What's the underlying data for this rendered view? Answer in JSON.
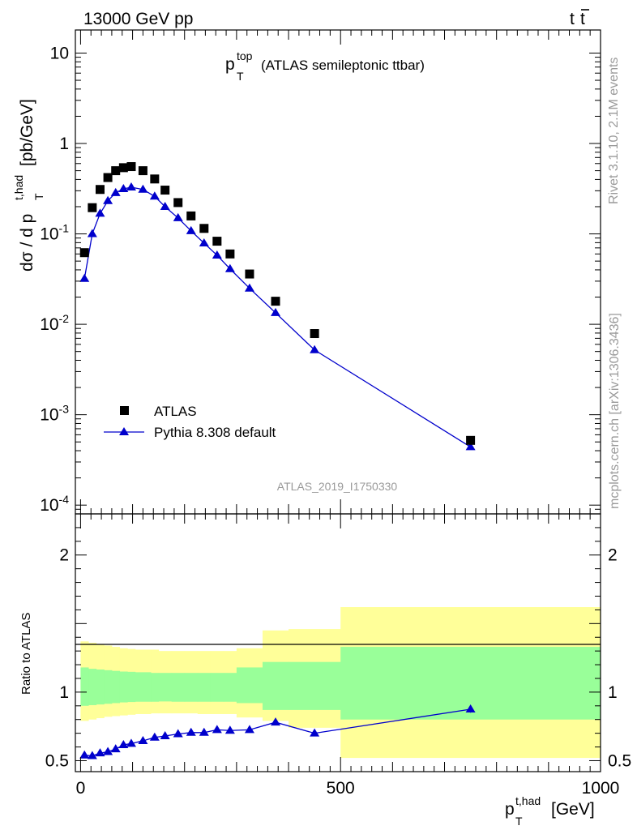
{
  "header": {
    "left": "13000 GeV pp",
    "right_main": "t",
    "right_bar": "t"
  },
  "side_labels": {
    "rivet": "Rivet 3.1.10,  2.1M events",
    "mcplots": "mcplots.cern.ch [arXiv:1306.3436]"
  },
  "chart_data": [
    {
      "type": "scatter",
      "panel": "main",
      "title": {
        "base": "p",
        "sup": "top",
        "sub": "T",
        "rest": "(ATLAS semileptonic ttbar)"
      },
      "ylabel": {
        "prefix": "dσ / d p",
        "sup": "t,had",
        "sub": "T",
        "suffix": "[pb/GeV]"
      },
      "yscale": "log",
      "xlim": [
        -10,
        1000
      ],
      "ylim": [
        8e-05,
        18
      ],
      "ytick_labels": [
        {
          "base": "10",
          "exp": "-4",
          "value": 0.0001
        },
        {
          "base": "10",
          "exp": "-3",
          "value": 0.001
        },
        {
          "base": "10",
          "exp": "-2",
          "value": 0.01
        },
        {
          "base": "10",
          "exp": "-1",
          "value": 0.1
        },
        {
          "base": "1",
          "exp": "",
          "value": 1
        },
        {
          "base": "10",
          "exp": "",
          "value": 10
        }
      ],
      "watermark": "ATLAS_2019_I1750330",
      "legend_position": "lower-left",
      "series": [
        {
          "name": "ATLAS",
          "marker": "square",
          "color": "#000000",
          "x": [
            7.5,
            22.5,
            37.5,
            52.5,
            67.5,
            82.5,
            97.5,
            120,
            142.5,
            162.5,
            187.5,
            212.5,
            237.5,
            262.5,
            287.5,
            325,
            375,
            450,
            750
          ],
          "y": [
            0.062,
            0.195,
            0.31,
            0.42,
            0.5,
            0.54,
            0.555,
            0.5,
            0.405,
            0.305,
            0.222,
            0.158,
            0.115,
            0.083,
            0.06,
            0.036,
            0.018,
            0.0079,
            0.00052
          ]
        },
        {
          "name": "Pythia 8.308 default",
          "marker": "triangle",
          "color": "#0000cc",
          "x": [
            7.5,
            22.5,
            37.5,
            52.5,
            67.5,
            82.5,
            97.5,
            120,
            142.5,
            162.5,
            187.5,
            212.5,
            237.5,
            262.5,
            287.5,
            325,
            375,
            450,
            750
          ],
          "y": [
            0.032,
            0.1,
            0.168,
            0.232,
            0.285,
            0.315,
            0.328,
            0.31,
            0.26,
            0.2,
            0.15,
            0.108,
            0.079,
            0.058,
            0.041,
            0.025,
            0.0134,
            0.0052,
            0.00044
          ]
        }
      ]
    },
    {
      "type": "line",
      "panel": "ratio",
      "ylabel": "Ratio to ATLAS",
      "xlabel": {
        "base": "p",
        "sup": "t,had",
        "sub": "T",
        "suffix": "[GeV]"
      },
      "xlim": [
        -10,
        1000
      ],
      "ylim": [
        0.42,
        2.3
      ],
      "xtick_labels": [
        "0",
        "500",
        "1000"
      ],
      "ytick_labels": [
        "0.5",
        "1",
        "2"
      ],
      "reference_line": 1,
      "bands": {
        "edges": [
          0,
          15,
          30,
          45,
          60,
          75,
          90,
          105,
          135,
          150,
          175,
          200,
          225,
          250,
          275,
          300,
          350,
          400,
          500,
          1000
        ],
        "outer_lo": [
          0.79,
          0.8,
          0.81,
          0.82,
          0.825,
          0.83,
          0.835,
          0.84,
          0.845,
          0.845,
          0.845,
          0.845,
          0.84,
          0.84,
          0.84,
          0.815,
          0.79,
          0.74,
          0.52
        ],
        "outer_hi": [
          1.37,
          1.36,
          1.35,
          1.34,
          1.33,
          1.32,
          1.315,
          1.31,
          1.31,
          1.3,
          1.3,
          1.3,
          1.3,
          1.3,
          1.3,
          1.32,
          1.45,
          1.46,
          1.62
        ],
        "inner_lo": [
          0.9,
          0.905,
          0.91,
          0.915,
          0.92,
          0.925,
          0.928,
          0.93,
          0.93,
          0.932,
          0.93,
          0.93,
          0.93,
          0.93,
          0.93,
          0.92,
          0.87,
          0.87,
          0.8
        ],
        "inner_hi": [
          1.18,
          1.17,
          1.165,
          1.16,
          1.155,
          1.15,
          1.148,
          1.145,
          1.14,
          1.14,
          1.14,
          1.14,
          1.14,
          1.14,
          1.14,
          1.18,
          1.22,
          1.22,
          1.33
        ],
        "outer_color": "#ffff99",
        "inner_color": "#99ff99"
      },
      "series": [
        {
          "name": "Pythia 8.308 default",
          "color": "#0000cc",
          "x": [
            7.5,
            22.5,
            37.5,
            52.5,
            67.5,
            82.5,
            97.5,
            120,
            142.5,
            162.5,
            187.5,
            212.5,
            237.5,
            262.5,
            287.5,
            325,
            375,
            450,
            750
          ],
          "y": [
            0.54,
            0.535,
            0.555,
            0.565,
            0.585,
            0.615,
            0.625,
            0.645,
            0.67,
            0.68,
            0.695,
            0.705,
            0.705,
            0.725,
            0.72,
            0.725,
            0.78,
            0.7,
            0.875
          ]
        }
      ]
    }
  ]
}
